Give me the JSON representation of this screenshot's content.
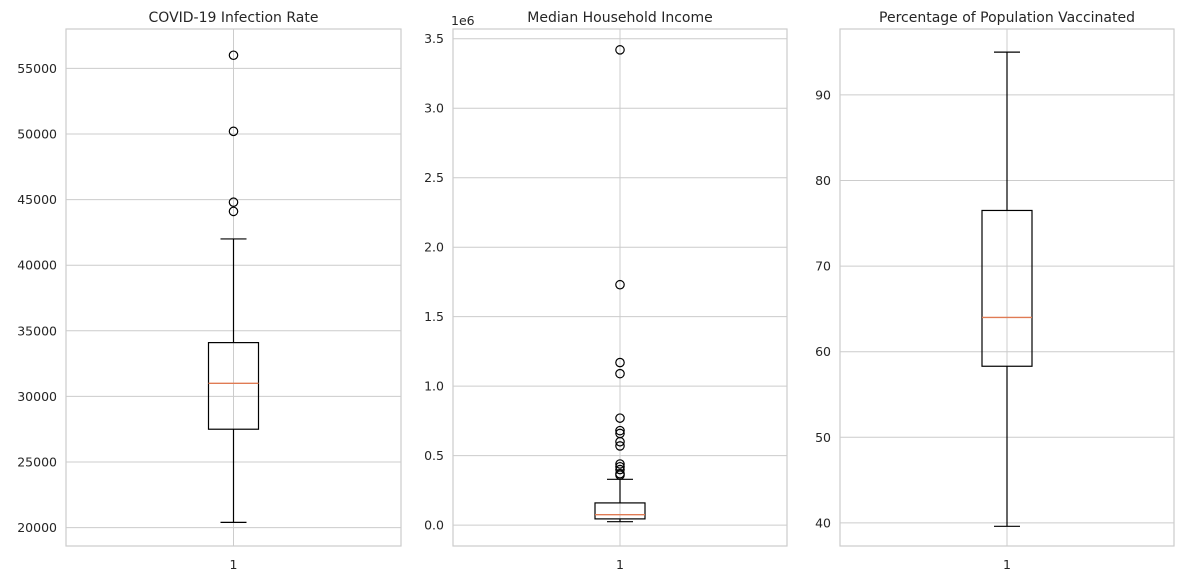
{
  "chart_data": [
    {
      "type": "box",
      "title": "COVID-19 Infection Rate",
      "category": "1",
      "ylim": [
        18600,
        58000
      ],
      "yticks": [
        20000,
        25000,
        30000,
        35000,
        40000,
        45000,
        50000,
        55000
      ],
      "ytick_labels": [
        "20000",
        "25000",
        "30000",
        "35000",
        "40000",
        "45000",
        "50000",
        "55000"
      ],
      "offset_label": "",
      "whisker_low": 20400,
      "q1": 27500,
      "median": 31000,
      "q3": 34100,
      "whisker_high": 42000,
      "outliers": [
        44100,
        44800,
        50200,
        56000
      ],
      "grid": true
    },
    {
      "type": "box",
      "title": "Median Household Income",
      "category": "1",
      "ylim": [
        -150000,
        3570000
      ],
      "yticks": [
        0,
        500000,
        1000000,
        1500000,
        2000000,
        2500000,
        3000000,
        3500000
      ],
      "ytick_labels": [
        "0.0",
        "0.5",
        "1.0",
        "1.5",
        "2.0",
        "2.5",
        "3.0",
        "3.5"
      ],
      "offset_label": "1e6",
      "whisker_low": 25000,
      "q1": 45000,
      "median": 75000,
      "q3": 160000,
      "whisker_high": 330000,
      "outliers": [
        360000,
        370000,
        400000,
        420000,
        440000,
        570000,
        600000,
        660000,
        680000,
        770000,
        1090000,
        1170000,
        1730000,
        3420000
      ],
      "grid": true
    },
    {
      "type": "box",
      "title": "Percentage of Population Vaccinated",
      "category": "1",
      "ylim": [
        37.3,
        97.7
      ],
      "yticks": [
        40,
        50,
        60,
        70,
        80,
        90
      ],
      "ytick_labels": [
        "40",
        "50",
        "60",
        "70",
        "80",
        "90"
      ],
      "offset_label": "",
      "whisker_low": 39.6,
      "q1": 58.3,
      "median": 64.0,
      "q3": 76.5,
      "whisker_high": 95.0,
      "outliers": [],
      "grid": true
    }
  ],
  "colors": {
    "grid": "#cccccc",
    "spine": "#cccccc",
    "box": "#000000",
    "median": "#e07b54",
    "text": "#262626"
  }
}
